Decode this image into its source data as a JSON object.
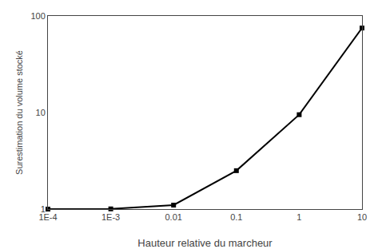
{
  "chart_data": {
    "type": "line",
    "x": [
      0.0001,
      0.001,
      0.01,
      0.1,
      1,
      10
    ],
    "values": [
      1.0,
      1.005,
      1.1,
      2.5,
      9.5,
      75.0
    ],
    "xlabel": "Hauteur relative du marcheur",
    "ylabel": "Surestimation du volume stocké",
    "xlim": [
      0.0001,
      10
    ],
    "ylim": [
      1,
      100
    ],
    "xticks": [
      {
        "value": 0.0001,
        "label": "1E-4"
      },
      {
        "value": 0.001,
        "label": "1E-3"
      },
      0.01,
      0.1,
      1,
      10
    ],
    "yticks": [
      1,
      10,
      100
    ],
    "log": true,
    "grid": false,
    "color": "black",
    "marker": "square",
    "line_style": "solid"
  }
}
